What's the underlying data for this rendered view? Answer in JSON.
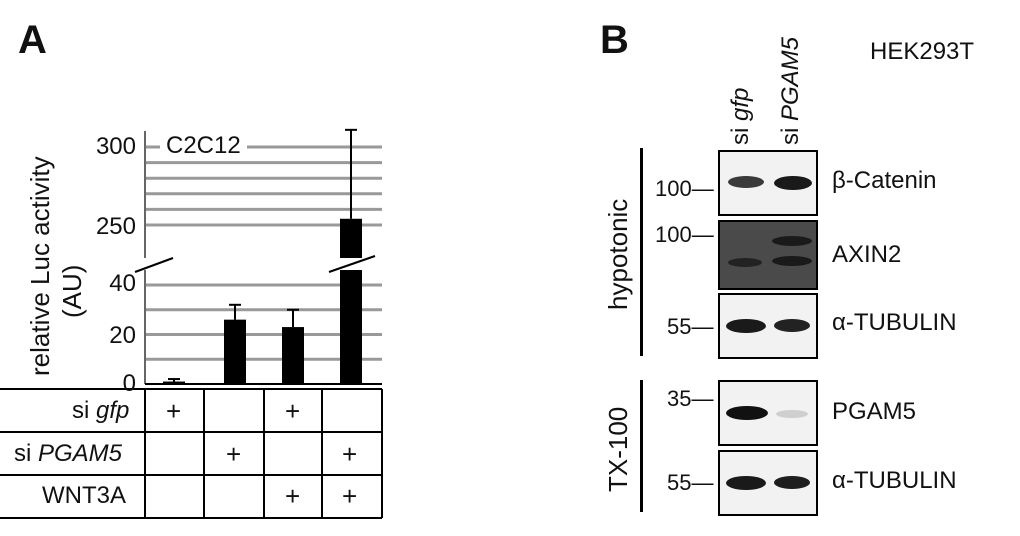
{
  "panel_a": {
    "label": "A",
    "cell_line": "C2C12",
    "ylabel_line1": "relative Luc activity",
    "ylabel_line2": "(AU)",
    "yticks": [
      "0",
      "20",
      "40",
      "250",
      "300"
    ],
    "rows": [
      {
        "prefix": "si ",
        "gene": "gfp",
        "marks": [
          "+",
          "",
          "+",
          ""
        ]
      },
      {
        "prefix": "si ",
        "gene": "PGAM5",
        "marks": [
          "",
          "+",
          "",
          "+"
        ]
      },
      {
        "prefix": "WNT3A",
        "gene": "",
        "marks": [
          "",
          "",
          "+",
          "+"
        ]
      }
    ]
  },
  "chart_data": {
    "type": "bar",
    "title": "C2C12",
    "ylabel": "relative Luc activity (AU)",
    "categories": [
      "si gfp",
      "si PGAM5",
      "si gfp + WNT3A",
      "si PGAM5 + WNT3A"
    ],
    "values": [
      1,
      26,
      23,
      254
    ],
    "errors": [
      1,
      6,
      7,
      57
    ],
    "y_axis_break": [
      45,
      245
    ],
    "ylim": [
      0,
      310
    ],
    "grid": true,
    "bar_color": "#000000",
    "grid_color": "#999999"
  },
  "panel_b": {
    "label": "B",
    "cell_line": "HEK293T",
    "lane_labels": [
      {
        "prefix": "si ",
        "gene": "gfp"
      },
      {
        "prefix": "si ",
        "gene": "PGAM5"
      }
    ],
    "fractions": [
      "hypotonic",
      "TX-100"
    ],
    "blots": [
      {
        "marker": "100",
        "protein": "β-Catenin"
      },
      {
        "marker": "100",
        "protein": "AXIN2"
      },
      {
        "marker": "55",
        "protein": "α-TUBULIN"
      },
      {
        "marker": "35",
        "protein": "PGAM5"
      },
      {
        "marker": "55",
        "protein": "α-TUBULIN"
      }
    ]
  }
}
